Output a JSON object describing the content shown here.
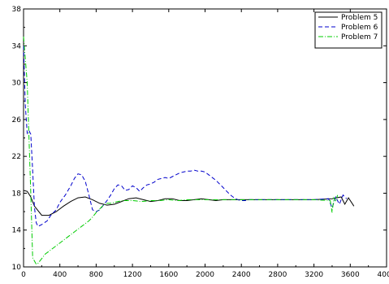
{
  "chart_data": {
    "type": "line",
    "title": "",
    "xlabel": "",
    "ylabel": "",
    "xlim": [
      0,
      4000
    ],
    "ylim": [
      10,
      38
    ],
    "xticks": [
      0,
      400,
      800,
      1200,
      1600,
      2000,
      2400,
      2800,
      3200,
      3600,
      4000
    ],
    "yticks": [
      10,
      14,
      18,
      22,
      26,
      30,
      34,
      38
    ],
    "xtick_labels": [
      "0",
      "400",
      "800",
      "1200",
      "1600",
      "2000",
      "2400",
      "2800",
      "3200",
      "3600",
      "4000"
    ],
    "ytick_labels": [
      "10",
      "14",
      "18",
      "22",
      "26",
      "30",
      "34",
      "38"
    ],
    "grid": false,
    "legend_position": "top-right",
    "series": [
      {
        "name": "Problem 5",
        "color": "#000000",
        "dash": "solid",
        "x": [
          0,
          40,
          80,
          120,
          200,
          280,
          360,
          440,
          520,
          600,
          680,
          760,
          840,
          920,
          1000,
          1080,
          1160,
          1240,
          1320,
          1400,
          1480,
          1560,
          1640,
          1720,
          1800,
          1880,
          1960,
          2040,
          2120,
          2200,
          2400,
          2600,
          2800,
          3000,
          3200,
          3400,
          3500,
          3540,
          3580,
          3640
        ],
        "y": [
          18.3,
          18.2,
          17.6,
          16.6,
          15.6,
          15.6,
          16.0,
          16.6,
          17.1,
          17.5,
          17.6,
          17.3,
          16.9,
          16.7,
          16.8,
          17.1,
          17.4,
          17.5,
          17.3,
          17.1,
          17.2,
          17.4,
          17.4,
          17.2,
          17.2,
          17.3,
          17.4,
          17.3,
          17.2,
          17.3,
          17.3,
          17.3,
          17.3,
          17.3,
          17.3,
          17.4,
          17.6,
          16.8,
          17.5,
          16.6
        ]
      },
      {
        "name": "Problem 6",
        "color": "#0000cc",
        "dash": "dashed",
        "x": [
          0,
          20,
          40,
          60,
          80,
          100,
          120,
          140,
          160,
          200,
          260,
          300,
          360,
          400,
          460,
          520,
          560,
          600,
          640,
          680,
          720,
          760,
          800,
          840,
          880,
          920,
          960,
          1000,
          1040,
          1080,
          1120,
          1160,
          1200,
          1240,
          1280,
          1320,
          1360,
          1400,
          1440,
          1480,
          1520,
          1560,
          1600,
          1640,
          1680,
          1720,
          1760,
          1800,
          1840,
          1880,
          1920,
          1960,
          2000,
          2040,
          2080,
          2120,
          2160,
          2200,
          2240,
          2280,
          2320,
          2360,
          2400,
          2440,
          2480,
          2600,
          2800,
          3000,
          3200,
          3360,
          3400,
          3440,
          3480,
          3520,
          3560
        ],
        "y": [
          34,
          27.5,
          24.5,
          24.8,
          24.4,
          20.5,
          16.5,
          14.8,
          14.4,
          14.6,
          15.0,
          15.6,
          16.2,
          17.0,
          17.8,
          18.8,
          19.6,
          20.1,
          20.0,
          19.3,
          17.8,
          16.2,
          16.0,
          16.2,
          16.7,
          17.2,
          17.8,
          18.5,
          18.9,
          18.8,
          18.3,
          18.4,
          18.8,
          18.6,
          18.2,
          18.6,
          18.9,
          19.0,
          19.2,
          19.5,
          19.6,
          19.7,
          19.6,
          19.8,
          20.0,
          20.2,
          20.3,
          20.4,
          20.4,
          20.5,
          20.4,
          20.4,
          20.3,
          20.0,
          19.7,
          19.4,
          19.0,
          18.6,
          18.2,
          17.8,
          17.5,
          17.3,
          17.2,
          17.2,
          17.3,
          17.3,
          17.3,
          17.3,
          17.3,
          17.4,
          16.4,
          17.6,
          16.8,
          17.8,
          17.4
        ]
      },
      {
        "name": "Problem 7",
        "color": "#00cc00",
        "dash": "dashdot",
        "x": [
          0,
          40,
          80,
          100,
          140,
          160,
          200,
          240,
          280,
          320,
          400,
          480,
          560,
          640,
          720,
          760,
          800,
          840,
          880,
          920,
          960,
          1000,
          1040,
          1100,
          1200,
          1300,
          1400,
          1500,
          1600,
          1700,
          1800,
          2000,
          2200,
          2400,
          2600,
          2800,
          3000,
          3200,
          3380,
          3400,
          3420,
          3440,
          3460
        ],
        "y": [
          35.0,
          30.0,
          18.0,
          11.0,
          10.3,
          10.4,
          10.9,
          11.4,
          11.7,
          12.0,
          12.6,
          13.2,
          13.8,
          14.4,
          15.0,
          15.4,
          15.9,
          16.3,
          16.7,
          16.9,
          16.9,
          17.0,
          17.1,
          17.2,
          17.2,
          17.1,
          17.2,
          17.2,
          17.3,
          17.2,
          17.3,
          17.3,
          17.3,
          17.3,
          17.3,
          17.3,
          17.3,
          17.3,
          17.2,
          15.9,
          17.5,
          17.1,
          17.8
        ]
      }
    ]
  }
}
